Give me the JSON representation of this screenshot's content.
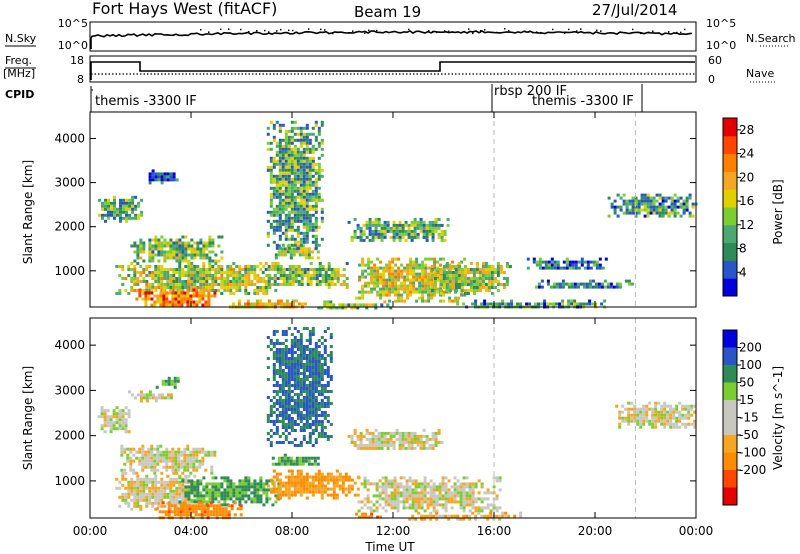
{
  "header": {
    "title": "Fort Hays West (fitACF)",
    "beam": "Beam 19",
    "date": "27/Jul/2014"
  },
  "noise_panel": {
    "left_label": "N.Sky",
    "right_label": "N.Search",
    "left_ticks": [
      "10^5",
      "10^0"
    ],
    "right_ticks": [
      "10^5",
      "10^0"
    ]
  },
  "freq_panel": {
    "left_label": "Freq.",
    "left_unit": "[MHz]",
    "right_label": "Nave",
    "left_ticks": [
      "18",
      "8"
    ],
    "right_ticks": [
      "60",
      "0"
    ]
  },
  "cpid_panel": {
    "label": "CPID",
    "segments": [
      {
        "name": "themis -3300 IF",
        "start_hour": 0,
        "end_hour": 16
      },
      {
        "name": "rbsp 200 IF",
        "start_hour": 16,
        "end_hour": 22
      },
      {
        "name": "themis -3300 IF",
        "start_hour": 16,
        "end_hour": 22
      }
    ]
  },
  "colors": {
    "scale_power": [
      "#0000dd",
      "#2855c8",
      "#2e8b57",
      "#4aa870",
      "#7ccd32",
      "#e0d000",
      "#f5a623",
      "#ff7f00",
      "#ff4500",
      "#e30000"
    ],
    "scale_velocity": [
      "#e30000",
      "#ff4500",
      "#ff8c00",
      "#f5a623",
      "#c8c8c0",
      "#c8c8c0",
      "#7ccd32",
      "#2e8b57",
      "#2855c8",
      "#0000dd"
    ]
  },
  "chart_data": [
    {
      "type": "heatmap",
      "title": "",
      "xlabel": "",
      "ylabel": "Slant Range [km]",
      "xlim": [
        0,
        24
      ],
      "ylim": [
        180,
        4600
      ],
      "x_ticks": [
        "00:00",
        "04:00",
        "08:00",
        "12:00",
        "16:00",
        "20:00",
        "00:00"
      ],
      "y_ticks": [
        1000,
        2000,
        3000,
        4000
      ],
      "colorbar": {
        "label": "Power [dB]",
        "ticks": [
          4,
          8,
          12,
          16,
          20,
          24,
          28
        ],
        "range": [
          0,
          30
        ]
      },
      "regions": [
        {
          "t0": 0.2,
          "t1": 2.1,
          "r0": 2150,
          "r1": 2700,
          "value": 10
        },
        {
          "t0": 1.6,
          "t1": 5.2,
          "r0": 1200,
          "r1": 1800,
          "value": 12
        },
        {
          "t0": 1.0,
          "t1": 7.3,
          "r0": 500,
          "r1": 1200,
          "value": 15
        },
        {
          "t0": 1.8,
          "t1": 5.0,
          "r0": 200,
          "r1": 600,
          "value": 22
        },
        {
          "t0": 5.5,
          "t1": 8.5,
          "r0": 180,
          "r1": 350,
          "value": 18
        },
        {
          "t0": 6.8,
          "t1": 10.2,
          "r0": 650,
          "r1": 1200,
          "value": 12
        },
        {
          "t0": 7.2,
          "t1": 9.0,
          "r0": 1300,
          "r1": 1600,
          "value": 14
        },
        {
          "t0": 9.0,
          "t1": 12.0,
          "r0": 180,
          "r1": 330,
          "value": 12
        },
        {
          "t0": 10.2,
          "t1": 14.2,
          "r0": 1700,
          "r1": 2200,
          "value": 10
        },
        {
          "t0": 10.5,
          "t1": 14.8,
          "r0": 300,
          "r1": 1300,
          "value": 16
        },
        {
          "t0": 13.5,
          "t1": 16.6,
          "r0": 500,
          "r1": 1200,
          "value": 14
        },
        {
          "t0": 14.5,
          "t1": 20.5,
          "r0": 180,
          "r1": 350,
          "value": 9
        },
        {
          "t0": 17.3,
          "t1": 20.5,
          "r0": 1050,
          "r1": 1300,
          "value": 6
        },
        {
          "t0": 17.5,
          "t1": 21.5,
          "r0": 600,
          "r1": 800,
          "value": 7
        },
        {
          "t0": 20.5,
          "t1": 24.0,
          "r0": 2250,
          "r1": 2750,
          "value": 9
        },
        {
          "t0": 7.0,
          "t1": 9.2,
          "r0": 1500,
          "r1": 4400,
          "value": 10
        },
        {
          "t0": 2.2,
          "t1": 3.5,
          "r0": 3000,
          "r1": 3300,
          "value": 5
        }
      ]
    },
    {
      "type": "heatmap",
      "title": "",
      "xlabel": "Time UT",
      "ylabel": "Slant Range [km]",
      "xlim": [
        0,
        24
      ],
      "ylim": [
        180,
        4600
      ],
      "x_ticks": [
        "00:00",
        "04:00",
        "08:00",
        "12:00",
        "16:00",
        "20:00",
        "00:00"
      ],
      "y_ticks": [
        1000,
        2000,
        3000,
        4000
      ],
      "colorbar": {
        "label": "Velocity [m s^-1]",
        "ticks": [
          200,
          100,
          50,
          15,
          -15,
          -50,
          -100,
          -200
        ]
      },
      "regions": [
        {
          "t0": 0.3,
          "t1": 1.6,
          "r0": 2100,
          "r1": 2650,
          "value": 0
        },
        {
          "t0": 1.2,
          "t1": 5.0,
          "r0": 1200,
          "r1": 1800,
          "value": 0
        },
        {
          "t0": 1.0,
          "t1": 4.2,
          "r0": 400,
          "r1": 1200,
          "value": -10
        },
        {
          "t0": 3.5,
          "t1": 7.5,
          "r0": 500,
          "r1": 1100,
          "value": 60
        },
        {
          "t0": 2.6,
          "t1": 6.0,
          "r0": 180,
          "r1": 550,
          "value": -80
        },
        {
          "t0": 7.0,
          "t1": 10.6,
          "r0": 650,
          "r1": 1250,
          "value": -50
        },
        {
          "t0": 7.2,
          "t1": 9.0,
          "r0": 1350,
          "r1": 1600,
          "value": 60
        },
        {
          "t0": 10.5,
          "t1": 11.5,
          "r0": 180,
          "r1": 300,
          "value": -80
        },
        {
          "t0": 10.2,
          "t1": 14.0,
          "r0": 1700,
          "r1": 2150,
          "value": 0
        },
        {
          "t0": 10.6,
          "t1": 16.2,
          "r0": 350,
          "r1": 1100,
          "value": 0
        },
        {
          "t0": 12.6,
          "t1": 17.0,
          "r0": 180,
          "r1": 320,
          "value": -30
        },
        {
          "t0": 20.8,
          "t1": 24.0,
          "r0": 2200,
          "r1": 2750,
          "value": 0
        },
        {
          "t0": 7.0,
          "t1": 9.5,
          "r0": 1800,
          "r1": 4400,
          "value": 100
        },
        {
          "t0": 2.6,
          "t1": 3.5,
          "r0": 3100,
          "r1": 3300,
          "value": 60
        },
        {
          "t0": 1.5,
          "t1": 3.2,
          "r0": 2800,
          "r1": 3000,
          "value": 0
        }
      ]
    }
  ]
}
